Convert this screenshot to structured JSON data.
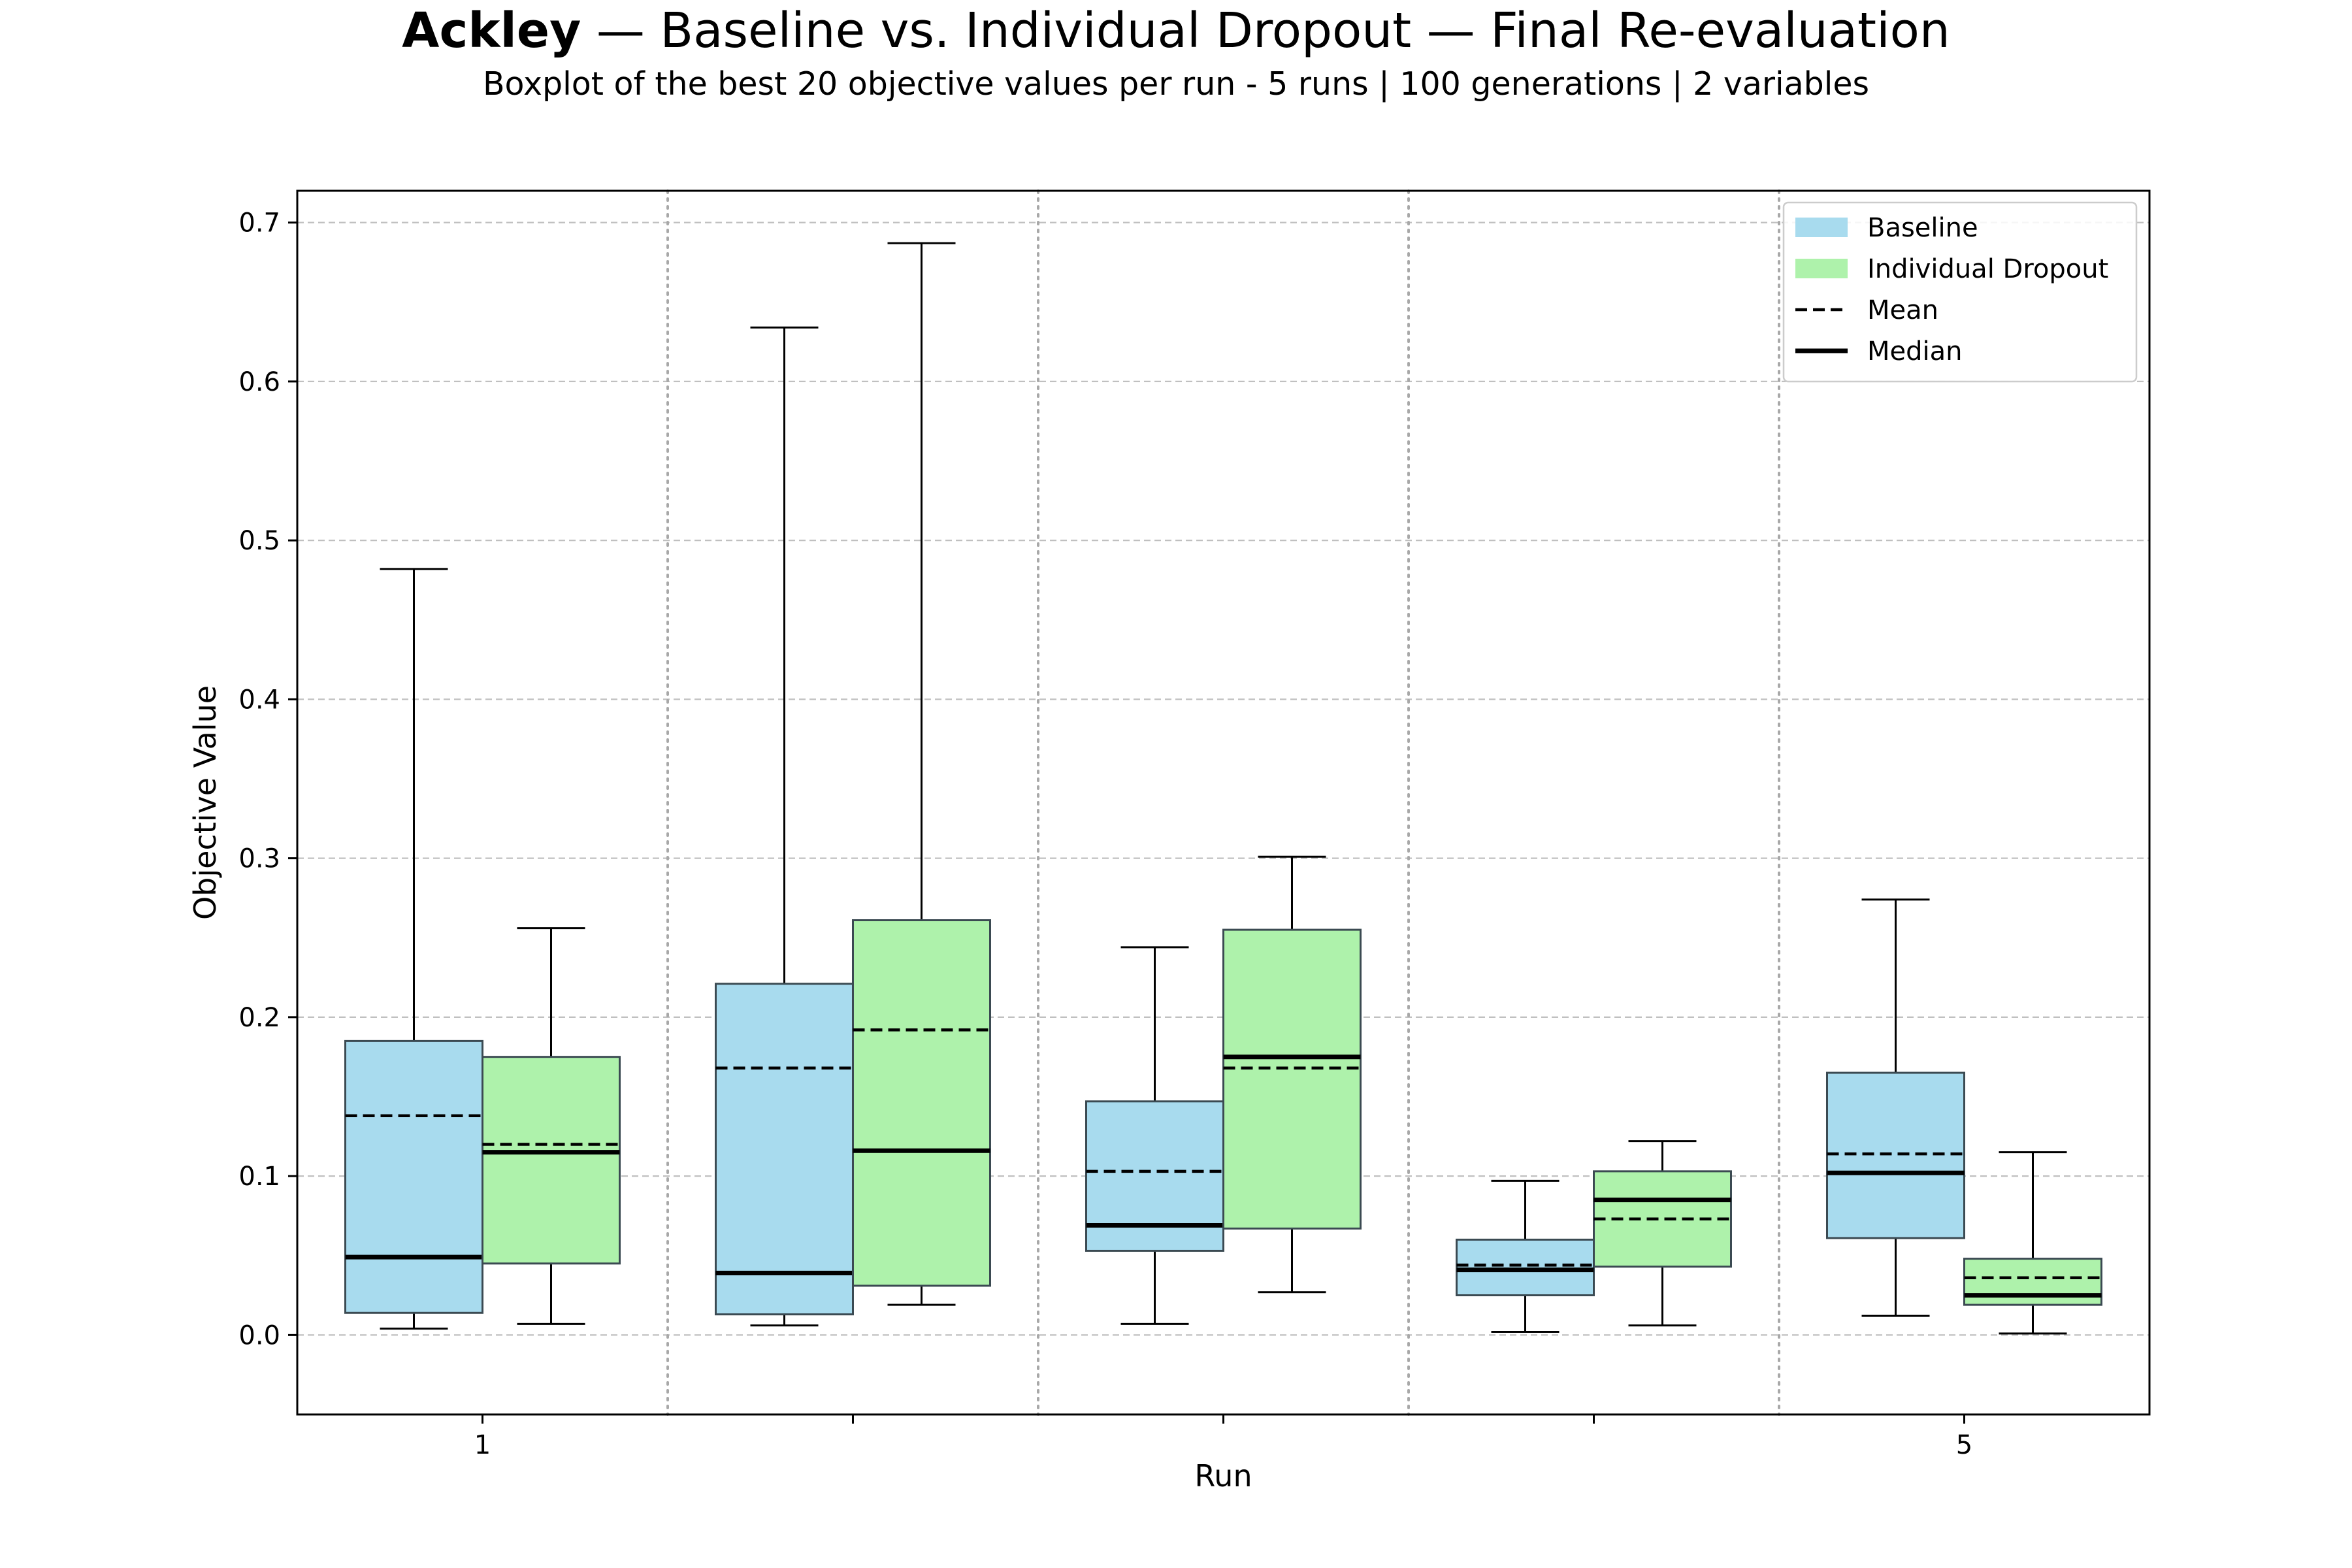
{
  "title": {
    "bold_part": "Ackley",
    "rest": " — Baseline vs. Individual Dropout — Final Re-evaluation",
    "subtitle": "Boxplot of the best 20 objective values per run - 5 runs | 100 generations | 2 variables"
  },
  "colors": {
    "baseline": "#a8dbee",
    "dropout": "#aef2ab",
    "edge": "#3b4a52",
    "grid": "#c0c0c0"
  },
  "chart_data": {
    "type": "boxplot",
    "xlabel": "Run",
    "ylabel": "Objective Value",
    "ylim": [
      -0.05,
      0.72
    ],
    "yticks": [
      0.0,
      0.1,
      0.2,
      0.3,
      0.4,
      0.5,
      0.6,
      0.7
    ],
    "ytick_labels": [
      "0.0",
      "0.1",
      "0.2",
      "0.3",
      "0.4",
      "0.5",
      "0.6",
      "0.7"
    ],
    "xtick_labels": [
      "1",
      "",
      "",
      "",
      "5"
    ],
    "grid": true,
    "legend_position": "top-right",
    "legend": [
      {
        "label": "Baseline",
        "kind": "patch",
        "color_key": "baseline"
      },
      {
        "label": "Individual Dropout",
        "kind": "patch",
        "color_key": "dropout"
      },
      {
        "label": "Mean",
        "kind": "dashed"
      },
      {
        "label": "Median",
        "kind": "solid"
      }
    ],
    "runs": [
      1,
      2,
      3,
      4,
      5
    ],
    "series": [
      {
        "name": "Baseline",
        "color_key": "baseline",
        "boxes": [
          {
            "whislo": 0.004,
            "q1": 0.014,
            "med": 0.049,
            "mean": 0.138,
            "q3": 0.185,
            "whishi": 0.482
          },
          {
            "whislo": 0.006,
            "q1": 0.013,
            "med": 0.039,
            "mean": 0.168,
            "q3": 0.221,
            "whishi": 0.634
          },
          {
            "whislo": 0.007,
            "q1": 0.053,
            "med": 0.069,
            "mean": 0.103,
            "q3": 0.147,
            "whishi": 0.244
          },
          {
            "whislo": 0.002,
            "q1": 0.025,
            "med": 0.041,
            "mean": 0.044,
            "q3": 0.06,
            "whishi": 0.097
          },
          {
            "whislo": 0.012,
            "q1": 0.061,
            "med": 0.102,
            "mean": 0.114,
            "q3": 0.165,
            "whishi": 0.274
          }
        ]
      },
      {
        "name": "Individual Dropout",
        "color_key": "dropout",
        "boxes": [
          {
            "whislo": 0.007,
            "q1": 0.045,
            "med": 0.115,
            "mean": 0.12,
            "q3": 0.175,
            "whishi": 0.256
          },
          {
            "whislo": 0.019,
            "q1": 0.031,
            "med": 0.116,
            "mean": 0.192,
            "q3": 0.261,
            "whishi": 0.687
          },
          {
            "whislo": 0.027,
            "q1": 0.067,
            "med": 0.175,
            "mean": 0.168,
            "q3": 0.255,
            "whishi": 0.301
          },
          {
            "whislo": 0.006,
            "q1": 0.043,
            "med": 0.085,
            "mean": 0.073,
            "q3": 0.103,
            "whishi": 0.122
          },
          {
            "whislo": 0.001,
            "q1": 0.019,
            "med": 0.025,
            "mean": 0.036,
            "q3": 0.048,
            "whishi": 0.115
          }
        ]
      }
    ]
  }
}
